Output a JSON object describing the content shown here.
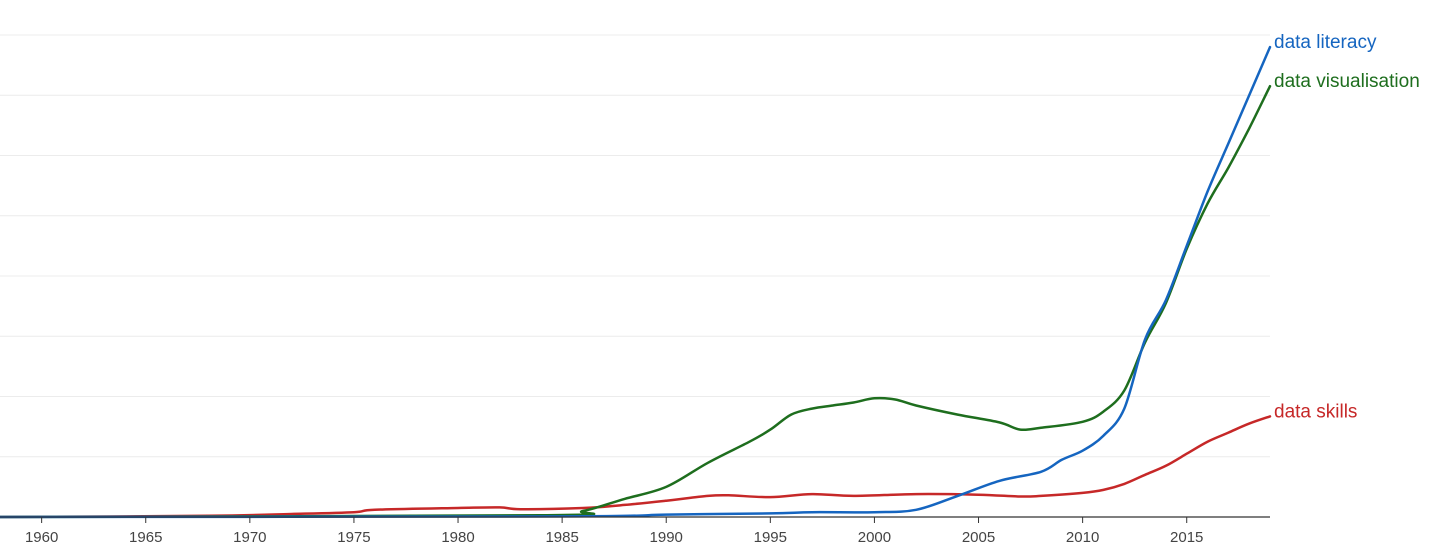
{
  "chart_data": {
    "type": "line",
    "title": "",
    "xlabel": "",
    "ylabel": "",
    "xlim": [
      1958,
      2019
    ],
    "ylim": [
      0,
      8
    ],
    "grid": true,
    "legend": "inline labels at line ends",
    "x_ticks": [
      "1960",
      "1965",
      "1970",
      "1975",
      "1980",
      "1985",
      "1990",
      "1995",
      "2000",
      "2005",
      "2010",
      "2015"
    ],
    "series": [
      {
        "name": "data literacy",
        "color": "#1565c0",
        "points": [
          [
            1958,
            0
          ],
          [
            1985,
            0.01
          ],
          [
            1990,
            0.04
          ],
          [
            1995,
            0.06
          ],
          [
            1997,
            0.08
          ],
          [
            2000,
            0.08
          ],
          [
            2002,
            0.12
          ],
          [
            2004,
            0.35
          ],
          [
            2006,
            0.6
          ],
          [
            2008,
            0.75
          ],
          [
            2009,
            0.95
          ],
          [
            2010,
            1.1
          ],
          [
            2011,
            1.35
          ],
          [
            2012,
            1.8
          ],
          [
            2013,
            2.95
          ],
          [
            2014,
            3.6
          ],
          [
            2015,
            4.5
          ],
          [
            2016,
            5.4
          ],
          [
            2017,
            6.2
          ],
          [
            2018,
            7.0
          ],
          [
            2019,
            7.8
          ]
        ]
      },
      {
        "name": "data visualisation",
        "color": "#1e6e1e",
        "points": [
          [
            1958,
            0
          ],
          [
            1984,
            0.03
          ],
          [
            1986,
            0.1
          ],
          [
            1988,
            0.3
          ],
          [
            1990,
            0.5
          ],
          [
            1992,
            0.9
          ],
          [
            1994,
            1.25
          ],
          [
            1995,
            1.45
          ],
          [
            1996,
            1.7
          ],
          [
            1997,
            1.8
          ],
          [
            1998,
            1.85
          ],
          [
            1999,
            1.9
          ],
          [
            2000,
            1.97
          ],
          [
            2001,
            1.95
          ],
          [
            2002,
            1.85
          ],
          [
            2004,
            1.7
          ],
          [
            2006,
            1.57
          ],
          [
            2007,
            1.45
          ],
          [
            2008,
            1.48
          ],
          [
            2010,
            1.58
          ],
          [
            2011,
            1.75
          ],
          [
            2012,
            2.1
          ],
          [
            2013,
            2.9
          ],
          [
            2014,
            3.55
          ],
          [
            2015,
            4.45
          ],
          [
            2016,
            5.2
          ],
          [
            2017,
            5.8
          ],
          [
            2018,
            6.45
          ],
          [
            2019,
            7.15
          ]
        ]
      },
      {
        "name": "data skills",
        "color": "#c62828",
        "points": [
          [
            1958,
            0
          ],
          [
            1968,
            0.02
          ],
          [
            1972,
            0.05
          ],
          [
            1975,
            0.08
          ],
          [
            1976,
            0.12
          ],
          [
            1980,
            0.15
          ],
          [
            1982,
            0.16
          ],
          [
            1983,
            0.13
          ],
          [
            1986,
            0.15
          ],
          [
            1988,
            0.2
          ],
          [
            1990,
            0.27
          ],
          [
            1992,
            0.35
          ],
          [
            1993,
            0.36
          ],
          [
            1995,
            0.33
          ],
          [
            1997,
            0.38
          ],
          [
            1999,
            0.35
          ],
          [
            2002,
            0.38
          ],
          [
            2005,
            0.37
          ],
          [
            2007,
            0.34
          ],
          [
            2008,
            0.35
          ],
          [
            2010,
            0.4
          ],
          [
            2011,
            0.45
          ],
          [
            2012,
            0.55
          ],
          [
            2013,
            0.7
          ],
          [
            2014,
            0.85
          ],
          [
            2015,
            1.05
          ],
          [
            2016,
            1.25
          ],
          [
            2017,
            1.4
          ],
          [
            2018,
            1.55
          ],
          [
            2019,
            1.67
          ]
        ]
      }
    ]
  }
}
